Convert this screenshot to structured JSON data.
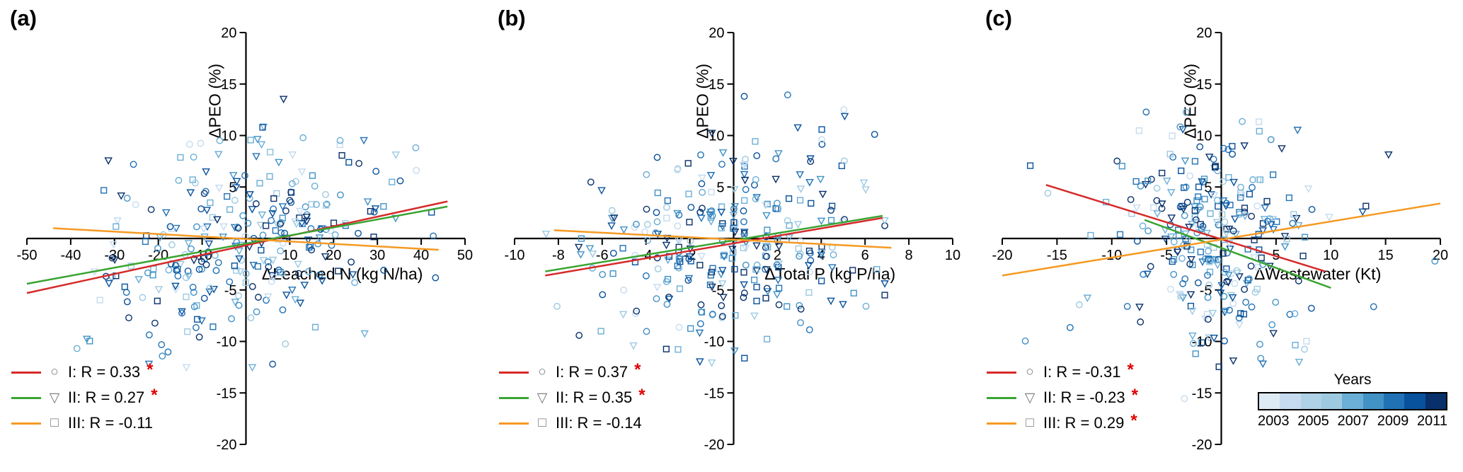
{
  "figure": {
    "background": "#ffffff",
    "axis_color": "#000000",
    "significance_color": "#e00000",
    "marker_palette": [
      "#c6dbef",
      "#9ecae1",
      "#6baed6",
      "#4292c6",
      "#2171b5",
      "#08519c",
      "#08306b"
    ],
    "colorbar": {
      "title": "Years",
      "ticks": [
        "2003",
        "2005",
        "2007",
        "2009",
        "2011"
      ],
      "colors": [
        "#deebf5",
        "#c6dbef",
        "#aed1e6",
        "#9ecae1",
        "#6baed6",
        "#4292c6",
        "#2171b5",
        "#08519c",
        "#08306b"
      ]
    }
  },
  "chart_data": [
    {
      "type": "scatter",
      "label": "(a)",
      "xlabel": "ΔLeached N (kg N/ha)",
      "ylabel": "ΔPEO (%)",
      "xlim": [
        -50,
        50
      ],
      "ylim": [
        -20,
        20
      ],
      "xticks": [
        -50,
        -40,
        -30,
        -20,
        -10,
        10,
        20,
        30,
        40,
        50
      ],
      "yticks": [
        -20,
        -15,
        -10,
        -5,
        5,
        10,
        15,
        20
      ],
      "series": [
        {
          "name": "I",
          "marker": "circle",
          "glyph": "○",
          "legend_text": "I: R = 0.33",
          "r_value": 0.33,
          "sig_mark": "*",
          "line_color": "#d62b2b",
          "trend": {
            "x1": -50,
            "y1": -5.3,
            "x2": 46,
            "y2": 3.6
          }
        },
        {
          "name": "II",
          "marker": "triangle-down",
          "glyph": "▽",
          "legend_text": "II: R = 0.27",
          "r_value": 0.27,
          "sig_mark": "*",
          "line_color": "#3aa433",
          "trend": {
            "x1": -50,
            "y1": -4.4,
            "x2": 46,
            "y2": 3.1
          }
        },
        {
          "name": "III",
          "marker": "square",
          "glyph": "□",
          "legend_text": "III: R = -0.11",
          "r_value": -0.11,
          "sig_mark": "",
          "line_color": "#f59a23",
          "trend": {
            "x1": -44,
            "y1": 1.0,
            "x2": 44,
            "y2": -1.1
          }
        }
      ],
      "cloud": {
        "seed": 7,
        "count": 295,
        "x_sd": 16,
        "x_mix": 1,
        "x_round": 0,
        "slope": 0.07,
        "y_sd": 5.2,
        "x_clip": [
          -50,
          47
        ],
        "y_clip": [
          -12.5,
          14
        ]
      }
    },
    {
      "type": "scatter",
      "label": "(b)",
      "xlabel": "ΔTotal P (kg P/ha)",
      "ylabel": "ΔPEO (%)",
      "xlim": [
        -10,
        10
      ],
      "ylim": [
        -20,
        20
      ],
      "xticks": [
        -10,
        -8,
        -6,
        -4,
        -2,
        2,
        4,
        6,
        8,
        10
      ],
      "yticks": [
        -20,
        -15,
        -10,
        -5,
        5,
        10,
        15,
        20
      ],
      "series": [
        {
          "name": "I",
          "marker": "circle",
          "glyph": "○",
          "legend_text": "I: R = 0.37",
          "r_value": 0.37,
          "sig_mark": "*",
          "line_color": "#d62b2b",
          "trend": {
            "x1": -8.6,
            "y1": -3.6,
            "x2": 6.8,
            "y2": 2.0
          }
        },
        {
          "name": "II",
          "marker": "triangle-down",
          "glyph": "▽",
          "legend_text": "II: R = 0.35",
          "r_value": 0.35,
          "sig_mark": "*",
          "line_color": "#3aa433",
          "trend": {
            "x1": -8.6,
            "y1": -3.2,
            "x2": 6.8,
            "y2": 2.2
          }
        },
        {
          "name": "III",
          "marker": "square",
          "glyph": "□",
          "legend_text": "III: R = -0.14",
          "r_value": -0.14,
          "sig_mark": "",
          "line_color": "#f59a23",
          "trend": {
            "x1": -8.2,
            "y1": 0.8,
            "x2": 7.2,
            "y2": -0.9
          }
        }
      ],
      "cloud": {
        "seed": 13,
        "count": 295,
        "x_sd": 3.2,
        "x_mix": 1,
        "x_round": 0.5,
        "slope": 0.35,
        "y_sd": 5.0,
        "x_clip": [
          -8.6,
          6.9
        ],
        "y_clip": [
          -13,
          14
        ]
      }
    },
    {
      "type": "scatter",
      "label": "(c)",
      "xlabel": "ΔWastewater (Kt)",
      "ylabel": "ΔPEO (%)",
      "xlim": [
        -20,
        20
      ],
      "ylim": [
        -20,
        20
      ],
      "xticks": [
        -20,
        -15,
        -10,
        -5,
        5,
        10,
        15,
        20
      ],
      "yticks": [
        -20,
        -15,
        -10,
        -5,
        5,
        10,
        15,
        20
      ],
      "series": [
        {
          "name": "I",
          "marker": "circle",
          "glyph": "○",
          "legend_text": "I: R = -0.31",
          "r_value": -0.31,
          "sig_mark": "*",
          "line_color": "#d62b2b",
          "trend": {
            "x1": -16,
            "y1": 5.2,
            "x2": 9.5,
            "y2": -3.2
          }
        },
        {
          "name": "II",
          "marker": "triangle-down",
          "glyph": "▽",
          "legend_text": "II: R = -0.23",
          "r_value": -0.23,
          "sig_mark": "*",
          "line_color": "#3aa433",
          "trend": {
            "x1": -7,
            "y1": 1.8,
            "x2": 10,
            "y2": -4.8
          }
        },
        {
          "name": "III",
          "marker": "square",
          "glyph": "□",
          "legend_text": "III: R = 0.29",
          "r_value": 0.29,
          "sig_mark": "*",
          "line_color": "#f59a23",
          "trend": {
            "x1": -20,
            "y1": -3.6,
            "x2": 20,
            "y2": 3.4
          }
        }
      ],
      "cloud": {
        "seed": 21,
        "count": 290,
        "x_sd": 3.4,
        "x_mix": 2.4,
        "x_round": 0,
        "slope": -0.06,
        "y_sd": 5.4,
        "x_clip": [
          -19,
          19.5
        ],
        "y_clip": [
          -16.5,
          14
        ]
      }
    }
  ]
}
